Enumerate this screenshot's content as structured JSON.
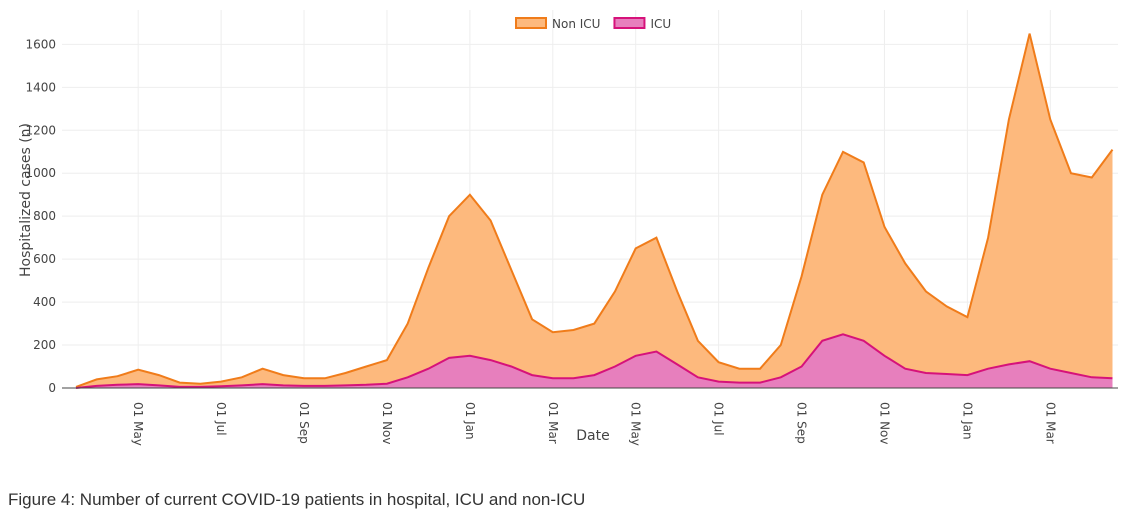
{
  "chart_data": {
    "type": "area",
    "caption": "Figure 4: Number of current COVID-19 patients in hospital, ICU and non-ICU",
    "x_label": "Date",
    "y_label": "Hospitalized cases (n)",
    "categories": [
      null,
      null,
      null,
      "01 May",
      null,
      null,
      null,
      "01 Jul",
      null,
      null,
      null,
      "01 Sep",
      null,
      null,
      null,
      "01 Nov",
      null,
      null,
      null,
      "01 Jan",
      null,
      null,
      null,
      "01 Mar",
      null,
      null,
      null,
      "01 May",
      null,
      null,
      null,
      "01 Jul",
      null,
      null,
      null,
      "01 Sep",
      null,
      null,
      null,
      "01 Nov",
      null,
      null,
      null,
      "01 Jan",
      null,
      null,
      null,
      "01 Mar",
      null,
      null,
      null
    ],
    "series": [
      {
        "name": "Non ICU",
        "color": "#f07c1a",
        "fill": "#fdb97d",
        "values": [
          5,
          40,
          55,
          85,
          60,
          25,
          20,
          30,
          50,
          90,
          60,
          45,
          45,
          70,
          100,
          130,
          300,
          560,
          800,
          900,
          780,
          550,
          320,
          260,
          270,
          300,
          450,
          650,
          700,
          450,
          220,
          120,
          90,
          90,
          200,
          520,
          900,
          1100,
          1050,
          750,
          580,
          450,
          380,
          330,
          700,
          1250,
          1650,
          1250,
          1000,
          980,
          1110
        ]
      },
      {
        "name": "ICU",
        "color": "#d6127a",
        "fill": "#e77fbd",
        "values": [
          0,
          10,
          15,
          18,
          12,
          5,
          5,
          8,
          12,
          18,
          12,
          10,
          10,
          12,
          15,
          20,
          50,
          90,
          140,
          150,
          130,
          100,
          60,
          45,
          45,
          60,
          100,
          150,
          170,
          110,
          50,
          30,
          25,
          25,
          50,
          100,
          220,
          250,
          220,
          150,
          90,
          70,
          65,
          60,
          90,
          110,
          125,
          90,
          70,
          50,
          45
        ]
      }
    ],
    "ylim": [
      0,
      1760
    ],
    "yticks": [
      0,
      200,
      400,
      600,
      800,
      1000,
      1200,
      1400,
      1600
    ],
    "grid": true,
    "legend": "top"
  }
}
